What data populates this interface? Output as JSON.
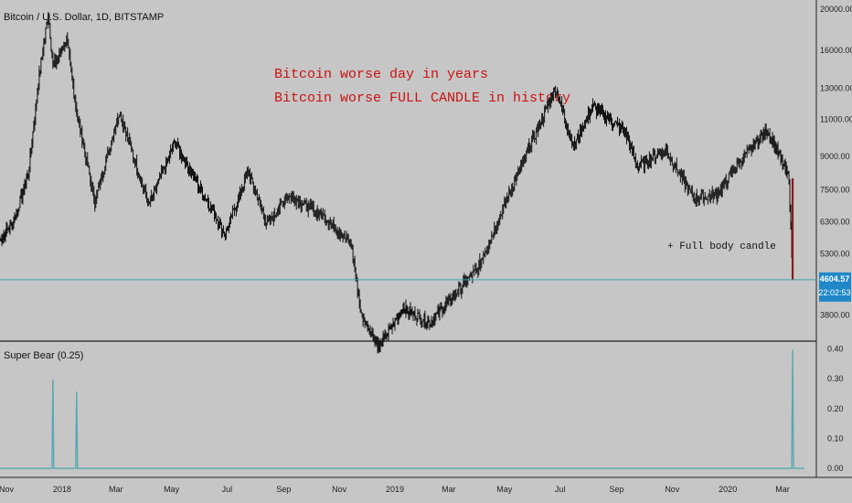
{
  "header": {
    "symbol_title": "Bitcoin / U.S. Dollar, 1D, BITSTAMP"
  },
  "annotations": {
    "line1": "Bitcoin worse day in years",
    "line2": "Bitcoin worse FULL CANDLE in history",
    "note": "+ Full body candle"
  },
  "price_badge": {
    "price": "4604.57",
    "countdown": "22:02:53",
    "color": "#1e88c8"
  },
  "colors": {
    "background": "#c6c6c6",
    "price_line": "#3f9fb4",
    "indicator_line": "#5aa8b0",
    "candle": "#111111",
    "last_candle": "#8b1a1a",
    "annotation": "#cc1111"
  },
  "chart_data": [
    {
      "type": "line",
      "title": "Bitcoin / U.S. Dollar, 1D, BITSTAMP",
      "scale": "log",
      "ylim": [
        3300,
        21000
      ],
      "y_ticks": [
        "20000.00",
        "16000.00",
        "13000.00",
        "11000.00",
        "9000.00",
        "7500.00",
        "6300.00",
        "5300.00",
        "3800.00"
      ],
      "x_ticks": [
        "Nov",
        "2018",
        "Mar",
        "May",
        "Jul",
        "Sep",
        "Nov",
        "2019",
        "Mar",
        "May",
        "Jul",
        "Sep",
        "Nov",
        "2020",
        "Mar"
      ],
      "x_range": [
        "2017-10-25",
        "2020-03-25"
      ],
      "last_price": 4604.57,
      "series": [
        {
          "x": [
            "2017-10-25",
            "2017-11-10",
            "2017-11-25",
            "2017-12-07",
            "2017-12-17",
            "2017-12-22",
            "2018-01-06",
            "2018-01-17",
            "2018-02-06",
            "2018-03-05",
            "2018-04-06",
            "2018-05-05",
            "2018-06-29",
            "2018-07-24",
            "2018-08-14",
            "2018-09-05",
            "2018-10-15",
            "2018-11-14",
            "2018-11-25",
            "2018-12-15",
            "2019-01-10",
            "2019-02-08",
            "2019-04-02",
            "2019-05-14",
            "2019-06-26",
            "2019-07-16",
            "2019-08-06",
            "2019-09-10",
            "2019-09-24",
            "2019-10-25",
            "2019-11-25",
            "2019-12-20",
            "2020-01-15",
            "2020-02-13",
            "2020-03-08",
            "2020-03-12"
          ],
          "values": [
            5700,
            6400,
            8200,
            14000,
            19600,
            14600,
            17000,
            11500,
            7000,
            11500,
            6900,
            9700,
            5900,
            8300,
            6200,
            7300,
            6500,
            5600,
            3800,
            3200,
            3950,
            3650,
            4900,
            8000,
            13000,
            9500,
            11800,
            10300,
            8500,
            9300,
            7150,
            7300,
            8800,
            10400,
            8000,
            4604.57
          ]
        }
      ]
    },
    {
      "type": "line",
      "title": "Super Bear (0.25)",
      "ylim": [
        -0.03,
        0.42
      ],
      "y_ticks": [
        "0.40",
        "0.30",
        "0.20",
        "0.10",
        "0.00"
      ],
      "series": [
        {
          "x": [
            "2017-12-22",
            "2018-01-17",
            "2020-03-12"
          ],
          "values": [
            0.295,
            0.255,
            0.395
          ]
        }
      ]
    }
  ]
}
